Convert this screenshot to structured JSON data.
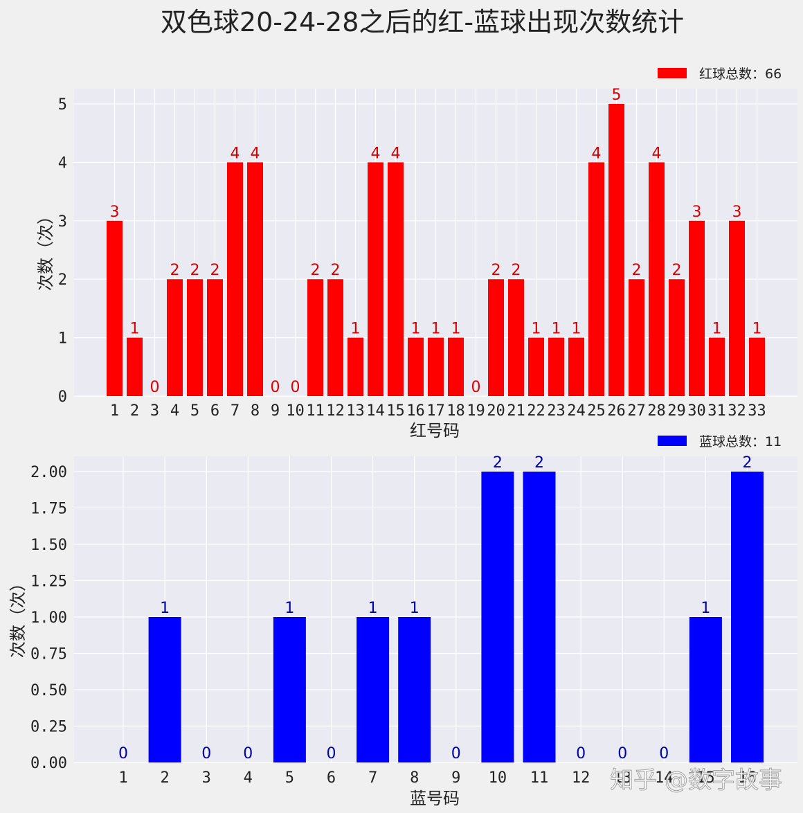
{
  "title": "双色球20-24-28之后的红-蓝球出现次数统计",
  "watermark": "知乎 @数字故事",
  "chart_data": [
    {
      "type": "bar",
      "color": "#ff0000",
      "label_color": "#dd0000",
      "legend": "红球总数：66",
      "legend_position": "top-right",
      "xlabel": "红号码",
      "ylabel": "次数（次）",
      "ylim": [
        0,
        5.25
      ],
      "yticks": [
        "0",
        "1",
        "2",
        "3",
        "4",
        "5"
      ],
      "grid": true,
      "categories": [
        "1",
        "2",
        "3",
        "4",
        "5",
        "6",
        "7",
        "8",
        "9",
        "10",
        "11",
        "12",
        "13",
        "14",
        "15",
        "16",
        "17",
        "18",
        "19",
        "20",
        "21",
        "22",
        "23",
        "24",
        "25",
        "26",
        "27",
        "28",
        "29",
        "30",
        "31",
        "32",
        "33"
      ],
      "values": [
        3,
        1,
        0,
        2,
        2,
        2,
        4,
        4,
        0,
        0,
        2,
        2,
        1,
        4,
        4,
        1,
        1,
        1,
        0,
        2,
        2,
        1,
        1,
        1,
        4,
        5,
        2,
        4,
        2,
        3,
        1,
        3,
        1
      ]
    },
    {
      "type": "bar",
      "color": "#0000ff",
      "label_color": "#0000aa",
      "legend": "蓝球总数：11",
      "legend_position": "top-right",
      "xlabel": "蓝号码",
      "ylabel": "次数（次）",
      "ylim": [
        0,
        2.1
      ],
      "yticks": [
        "0.00",
        "0.25",
        "0.50",
        "0.75",
        "1.00",
        "1.25",
        "1.50",
        "1.75",
        "2.00"
      ],
      "grid": true,
      "categories": [
        "1",
        "2",
        "3",
        "4",
        "5",
        "6",
        "7",
        "8",
        "9",
        "10",
        "11",
        "12",
        "13",
        "14",
        "15",
        "16"
      ],
      "values": [
        0,
        1,
        0,
        0,
        1,
        0,
        1,
        1,
        0,
        2,
        2,
        0,
        0,
        0,
        1,
        2
      ]
    }
  ]
}
